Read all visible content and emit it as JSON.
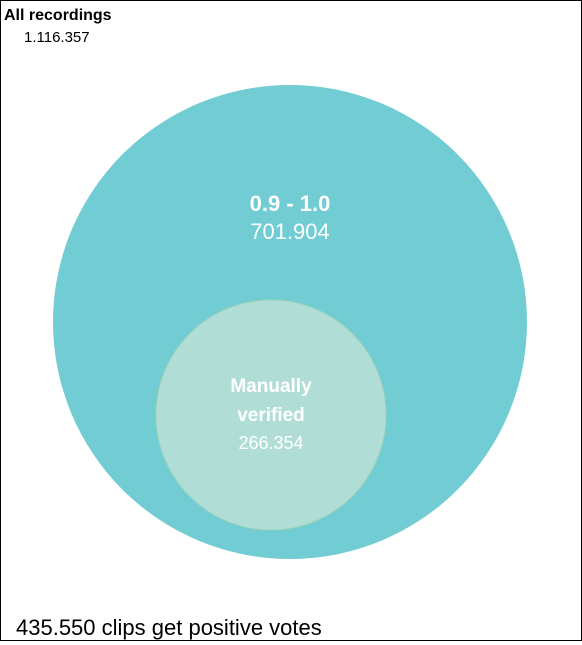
{
  "outer_set": {
    "label": "All recordings",
    "count": "1.116.357"
  },
  "large_set": {
    "label": "0.9 - 1.0",
    "count": "701.904",
    "color": "#71ccd3"
  },
  "inner_set": {
    "label_line1": "Manually",
    "label_line2": "verified",
    "count": "266.354",
    "color": "#b0ded6",
    "stroke": "#9fd3b8"
  },
  "footer": {
    "text": "435.550 clips get positive votes"
  }
}
